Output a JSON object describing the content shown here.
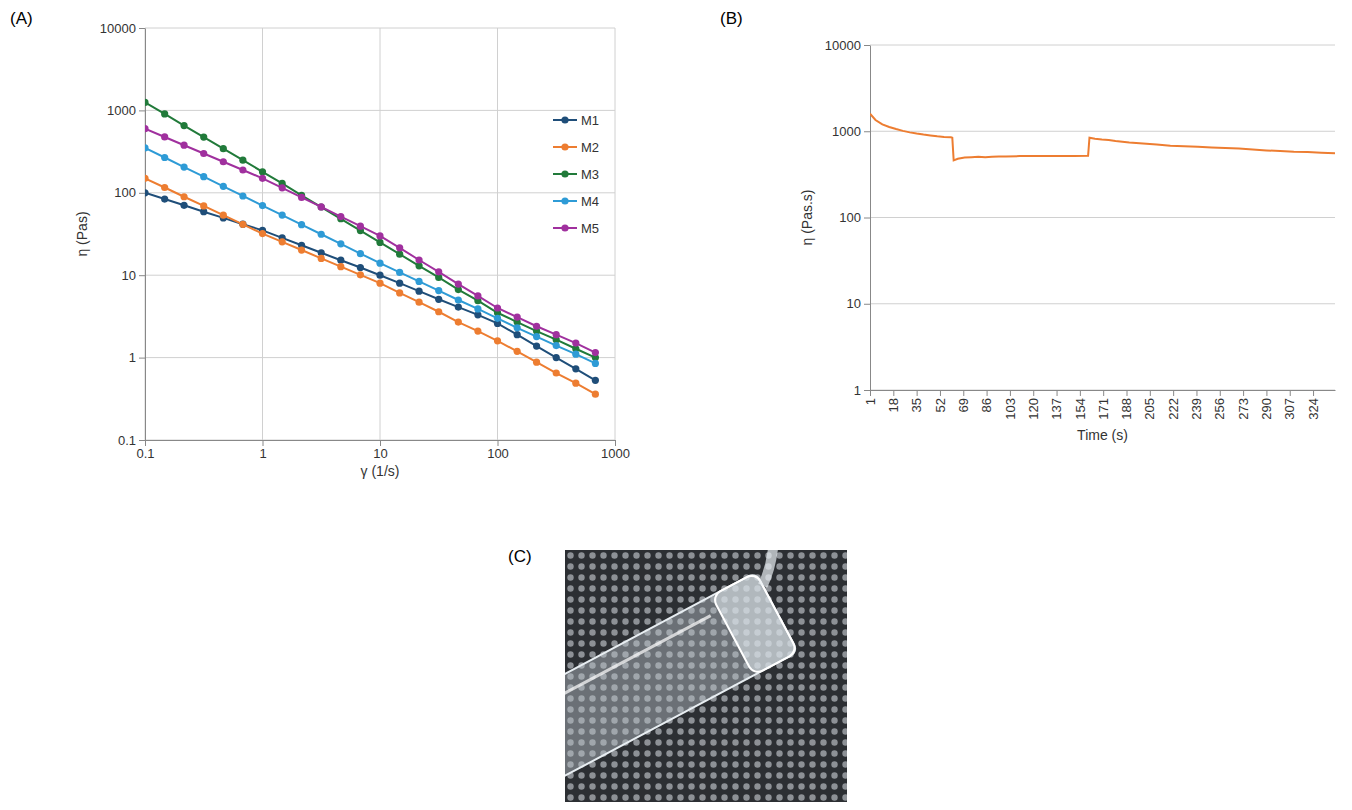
{
  "chart_data": [
    {
      "type": "line",
      "title": "(A)",
      "xlabel": "γ (1/s)",
      "ylabel": "η (Pas)",
      "log": true,
      "grid": true,
      "legend": "top-right",
      "marker": "circle",
      "x": [
        0.1,
        0.147,
        0.215,
        0.316,
        0.464,
        0.681,
        1,
        1.47,
        2.15,
        3.16,
        4.64,
        6.81,
        10,
        14.7,
        21.5,
        31.6,
        46.4,
        68.1,
        100,
        147,
        215,
        316,
        464,
        681
      ],
      "xlim": [
        0.1,
        1000
      ],
      "xticks": [
        0.1,
        1,
        10,
        100,
        1000
      ],
      "ylim": [
        0.1,
        10000
      ],
      "yticks": [
        0.1,
        1,
        10,
        100,
        1000,
        10000
      ],
      "series": [
        {
          "name": "M1",
          "color": "#1f4e79",
          "values": [
            100,
            84,
            70.5,
            59,
            49.6,
            41.6,
            35,
            28.4,
            23.1,
            18.7,
            15.2,
            12.4,
            10,
            8.0,
            6.4,
            5.1,
            4.1,
            3.3,
            2.6,
            1.9,
            1.38,
            1.0,
            0.73,
            0.53
          ]
        },
        {
          "name": "M2",
          "color": "#ed7d31",
          "values": [
            150,
            116,
            89.6,
            69.3,
            53.5,
            41.4,
            32,
            25.4,
            20.2,
            16.0,
            12.7,
            10.1,
            8,
            6.1,
            4.7,
            3.6,
            2.7,
            2.1,
            1.6,
            1.19,
            0.88,
            0.65,
            0.49,
            0.36
          ]
        },
        {
          "name": "M3",
          "color": "#217a3a",
          "values": [
            1250,
            905,
            655,
            474,
            343,
            249,
            180,
            130,
            93.3,
            67.2,
            48.4,
            34.8,
            25,
            18,
            13,
            9.4,
            6.7,
            4.9,
            3.5,
            2.7,
            2.1,
            1.65,
            1.28,
            1.0
          ]
        },
        {
          "name": "M4",
          "color": "#2e9bd6",
          "values": [
            350,
            268,
            205,
            157,
            120,
            91.5,
            70,
            53.6,
            41,
            31.4,
            24,
            18.3,
            14,
            10.8,
            8.4,
            6.5,
            5.0,
            3.9,
            3,
            2.3,
            1.8,
            1.4,
            1.1,
            0.85
          ]
        },
        {
          "name": "M5",
          "color": "#a0309e",
          "values": [
            600,
            476,
            378,
            300,
            238,
            189,
            150,
            115,
            87.9,
            67.3,
            51.5,
            39.4,
            30,
            21.5,
            15.3,
            11,
            7.8,
            5.6,
            4,
            3.1,
            2.4,
            1.9,
            1.5,
            1.15
          ]
        }
      ]
    },
    {
      "type": "line",
      "title": "(B)",
      "xlabel": "Time (s)",
      "ylabel": "η (Pas.s)",
      "log": "y",
      "grid": "y",
      "x": [
        1,
        5,
        10,
        15,
        20,
        25,
        30,
        35,
        40,
        45,
        50,
        55,
        60,
        61,
        62,
        65,
        70,
        75,
        80,
        85,
        90,
        95,
        100,
        110,
        120,
        130,
        140,
        150,
        160,
        161,
        165,
        170,
        175,
        180,
        190,
        200,
        210,
        220,
        230,
        240,
        250,
        260,
        270,
        280,
        290,
        300,
        310,
        320,
        330,
        340
      ],
      "xlim": [
        1,
        340
      ],
      "xticks": [
        1,
        18,
        35,
        52,
        69,
        86,
        103,
        120,
        137,
        154,
        171,
        188,
        205,
        222,
        239,
        256,
        273,
        290,
        307,
        324
      ],
      "ylim": [
        1,
        10000
      ],
      "yticks": [
        1,
        10,
        100,
        1000,
        10000
      ],
      "series": [
        {
          "color": "#ed7d31",
          "values": [
            1600,
            1350,
            1200,
            1120,
            1060,
            1010,
            970,
            940,
            915,
            895,
            875,
            860,
            850,
            840,
            460,
            480,
            495,
            500,
            505,
            500,
            505,
            510,
            510,
            515,
            515,
            515,
            515,
            515,
            520,
            840,
            820,
            800,
            790,
            770,
            740,
            720,
            700,
            680,
            670,
            660,
            650,
            640,
            630,
            615,
            600,
            590,
            580,
            575,
            565,
            555
          ]
        }
      ]
    },
    {
      "type": "image",
      "title": "(C)"
    }
  ]
}
